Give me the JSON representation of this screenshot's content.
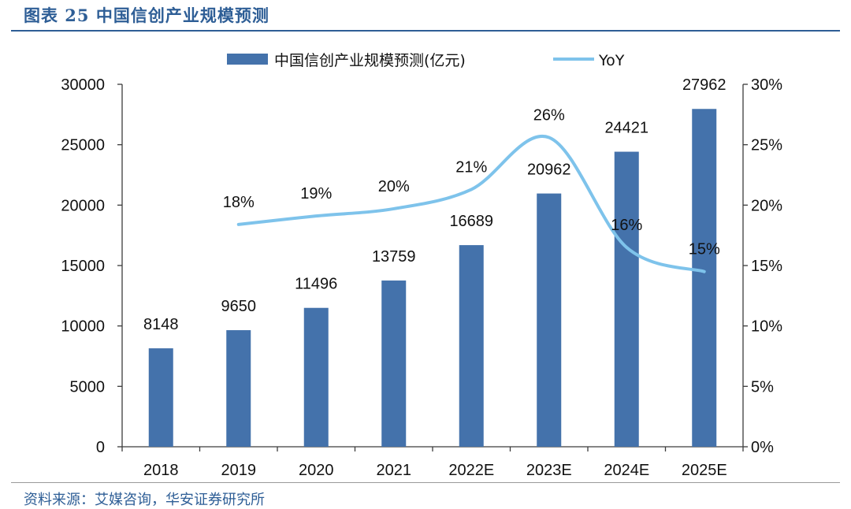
{
  "title": "图表 25 中国信创产业规模预测",
  "source": "资料来源：艾媒咨询，华安证券研究所",
  "colors": {
    "bar": "#4472ab",
    "line": "#7ec3eb",
    "title": "#2e5e96"
  },
  "chart_data": {
    "type": "bar",
    "categories": [
      "2018",
      "2019",
      "2020",
      "2021",
      "2022E",
      "2023E",
      "2024E",
      "2025E"
    ],
    "series": [
      {
        "name": "中国信创产业规模预测(亿元)",
        "type": "bar",
        "axis": "left",
        "values": [
          8148,
          9650,
          11496,
          13759,
          16689,
          20962,
          24421,
          27962
        ]
      },
      {
        "name": "YoY",
        "type": "line",
        "axis": "right",
        "values": [
          null,
          18.4,
          19.1,
          19.7,
          21.3,
          25.6,
          16.5,
          14.5
        ],
        "labels": [
          "",
          "18%",
          "19%",
          "20%",
          "21%",
          "26%",
          "16%",
          "15%"
        ]
      }
    ],
    "y_left": {
      "min": 0,
      "max": 30000,
      "ticks": [
        "0",
        "5000",
        "10000",
        "15000",
        "20000",
        "25000",
        "30000"
      ]
    },
    "y_right": {
      "min": 0,
      "max": 30,
      "ticks": [
        "0%",
        "5%",
        "10%",
        "15%",
        "20%",
        "25%",
        "30%"
      ]
    },
    "legend": "top-center",
    "grid": false
  }
}
